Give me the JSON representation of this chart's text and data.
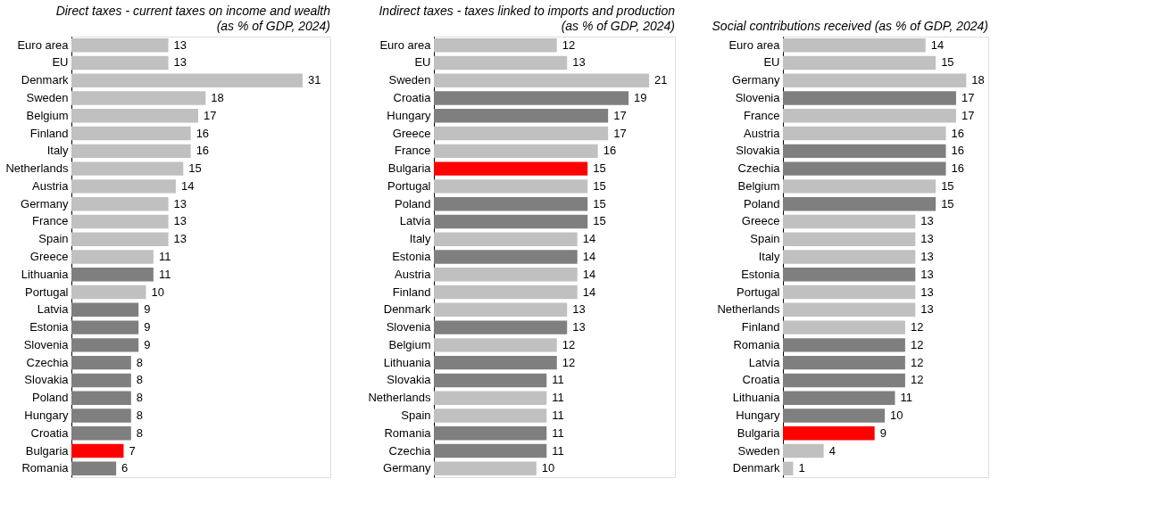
{
  "chart_data": [
    {
      "type": "bar",
      "orientation": "horizontal",
      "title": "Direct taxes - current taxes on income and wealth",
      "subtitle": "(as % of GDP, 2024)",
      "data_labels": true,
      "categories": [
        "Euro area",
        "EU",
        null,
        "Denmark",
        "Sweden",
        "Belgium",
        "Finland",
        "Italy",
        "Netherlands",
        "Austria",
        "Germany",
        "France",
        "Spain",
        "Greece",
        "Lithuania",
        "Portugal",
        "Latvia",
        "Estonia",
        "Slovenia",
        "Czechia",
        "Slovakia",
        "Poland",
        "Hungary",
        "Croatia",
        "Bulgaria",
        "Romania"
      ],
      "values": [
        13,
        13,
        null,
        31,
        18,
        17,
        16,
        16,
        15,
        14,
        13,
        13,
        13,
        11,
        11,
        10,
        9,
        9,
        9,
        8,
        8,
        8,
        8,
        8,
        7,
        6
      ],
      "colors": [
        "#c0c0c0",
        "#c0c0c0",
        "#c0c0c0",
        "#c0c0c0",
        "#c0c0c0",
        "#c0c0c0",
        "#c0c0c0",
        "#c0c0c0",
        "#c0c0c0",
        "#c0c0c0",
        "#c0c0c0",
        "#c0c0c0",
        "#c0c0c0",
        "#c0c0c0",
        "#7f7f7f",
        "#c0c0c0",
        "#7f7f7f",
        "#7f7f7f",
        "#7f7f7f",
        "#7f7f7f",
        "#7f7f7f",
        "#7f7f7f",
        "#7f7f7f",
        "#7f7f7f",
        "#ff0000",
        "#7f7f7f"
      ]
    },
    {
      "type": "bar",
      "orientation": "horizontal",
      "title": "Indirect taxes - taxes linked to imports and production",
      "subtitle": "(as % of GDP, 2024)",
      "data_labels": true,
      "categories": [
        "Euro area",
        "EU",
        null,
        "Sweden",
        "Croatia",
        "Hungary",
        "Greece",
        "France",
        "Bulgaria",
        "Portugal",
        "Poland",
        "Latvia",
        "Italy",
        "Estonia",
        "Austria",
        "Finland",
        "Denmark",
        "Slovenia",
        "Belgium",
        "Lithuania",
        "Slovakia",
        "Netherlands",
        "Spain",
        "Romania",
        "Czechia",
        "Germany"
      ],
      "values": [
        12,
        13,
        null,
        21,
        19,
        17,
        17,
        16,
        15,
        15,
        15,
        15,
        14,
        14,
        14,
        14,
        13,
        13,
        12,
        12,
        11,
        11,
        11,
        11,
        11,
        10
      ],
      "colors": [
        "#c0c0c0",
        "#c0c0c0",
        "#c0c0c0",
        "#c0c0c0",
        "#7f7f7f",
        "#7f7f7f",
        "#c0c0c0",
        "#c0c0c0",
        "#ff0000",
        "#c0c0c0",
        "#7f7f7f",
        "#7f7f7f",
        "#c0c0c0",
        "#7f7f7f",
        "#c0c0c0",
        "#c0c0c0",
        "#c0c0c0",
        "#7f7f7f",
        "#c0c0c0",
        "#7f7f7f",
        "#7f7f7f",
        "#c0c0c0",
        "#c0c0c0",
        "#7f7f7f",
        "#7f7f7f",
        "#c0c0c0"
      ]
    },
    {
      "type": "bar",
      "orientation": "horizontal",
      "title": "Social contributions received (as % of GDP, 2024)",
      "data_labels": true,
      "categories": [
        "Euro area",
        "EU",
        null,
        "Germany",
        "Slovenia",
        "France",
        "Austria",
        "Slovakia",
        "Czechia",
        "Belgium",
        "Poland",
        "Greece",
        "Spain",
        "Italy",
        "Estonia",
        "Portugal",
        "Netherlands",
        "Finland",
        "Romania",
        "Latvia",
        "Croatia",
        "Lithuania",
        "Hungary",
        "Bulgaria",
        "Sweden",
        "Denmark"
      ],
      "values": [
        14,
        15,
        null,
        18,
        17,
        17,
        16,
        16,
        16,
        15,
        15,
        13,
        13,
        13,
        13,
        13,
        13,
        12,
        12,
        12,
        12,
        11,
        10,
        9,
        4,
        1
      ],
      "colors": [
        "#c0c0c0",
        "#c0c0c0",
        "#c0c0c0",
        "#c0c0c0",
        "#7f7f7f",
        "#c0c0c0",
        "#c0c0c0",
        "#7f7f7f",
        "#7f7f7f",
        "#c0c0c0",
        "#7f7f7f",
        "#c0c0c0",
        "#c0c0c0",
        "#c0c0c0",
        "#7f7f7f",
        "#c0c0c0",
        "#c0c0c0",
        "#c0c0c0",
        "#7f7f7f",
        "#7f7f7f",
        "#7f7f7f",
        "#7f7f7f",
        "#7f7f7f",
        "#ff0000",
        "#c0c0c0",
        "#c0c0c0"
      ]
    }
  ]
}
